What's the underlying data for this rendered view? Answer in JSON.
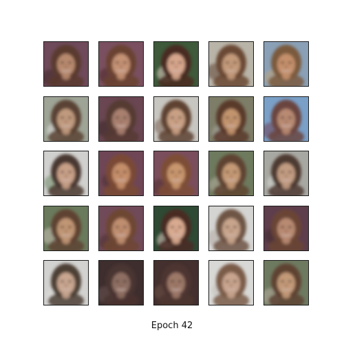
{
  "figure": {
    "caption": "Epoch 42",
    "rows": 5,
    "cols": 5
  },
  "samples": [
    {
      "bg": "#6e4a5a",
      "hair": "#5a3a2e",
      "skin": "#b78a6e",
      "accent": "#3e2a2a"
    },
    {
      "bg": "#7a5060",
      "hair": "#6a4230",
      "skin": "#c49274",
      "accent": "#4a2c2c"
    },
    {
      "bg": "#3e5a3a",
      "hair": "#4a2a20",
      "skin": "#d6a68c",
      "accent": "#e8d6c8"
    },
    {
      "bg": "#b9b4a8",
      "hair": "#6a4834",
      "skin": "#c39a7a",
      "accent": "#5e4636"
    },
    {
      "bg": "#8aa0b6",
      "hair": "#7a5a3e",
      "skin": "#c4906c",
      "accent": "#c0a27a"
    },
    {
      "bg": "#9ea496",
      "hair": "#5a4234",
      "skin": "#c09a7e",
      "accent": "#e0e0dc"
    },
    {
      "bg": "#6a4652",
      "hair": "#553a32",
      "skin": "#a98070",
      "accent": "#3a2a2c"
    },
    {
      "bg": "#c8c6c0",
      "hair": "#5e4232",
      "skin": "#c9a084",
      "accent": "#7a6252"
    },
    {
      "bg": "#7e7e68",
      "hair": "#5a3a2c",
      "skin": "#c2946e",
      "accent": "#a8a6a0"
    },
    {
      "bg": "#7aa0c8",
      "hair": "#6a4440",
      "skin": "#b88a72",
      "accent": "#6e3e52"
    },
    {
      "bg": "#d0d0ce",
      "hair": "#4a3830",
      "skin": "#c8a088",
      "accent": "#6e8a68"
    },
    {
      "bg": "#6e4656",
      "hair": "#7a4a34",
      "skin": "#c48e6a",
      "accent": "#4a2e30"
    },
    {
      "bg": "#7a4e5c",
      "hair": "#7e4e36",
      "skin": "#c8966e",
      "accent": "#4e3030"
    },
    {
      "bg": "#6e7a5e",
      "hair": "#5e4230",
      "skin": "#c49a76",
      "accent": "#b8b0a0"
    },
    {
      "bg": "#a8a8a2",
      "hair": "#4e3a32",
      "skin": "#c29c82",
      "accent": "#d8d8d4"
    },
    {
      "bg": "#6a7a5c",
      "hair": "#5e4232",
      "skin": "#c09674",
      "accent": "#c8c2b4"
    },
    {
      "bg": "#704a58",
      "hair": "#6e4632",
      "skin": "#bf8e70",
      "accent": "#4a2e30"
    },
    {
      "bg": "#2e4a34",
      "hair": "#4a2c24",
      "skin": "#d8aa90",
      "accent": "#e6cfc4"
    },
    {
      "bg": "#d4d4d2",
      "hair": "#6e5444",
      "skin": "#c8a48c",
      "accent": "#b4aca4"
    },
    {
      "bg": "#5e3e4c",
      "hair": "#6a4434",
      "skin": "#b88a72",
      "accent": "#3e2a2e"
    },
    {
      "bg": "#d2d2d0",
      "hair": "#4e4036",
      "skin": "#c8a690",
      "accent": "#e0ddd8"
    },
    {
      "bg": "#3e2e2e",
      "hair": "#4a3430",
      "skin": "#8e6e62",
      "accent": "#6a5450"
    },
    {
      "bg": "#44302e",
      "hair": "#4e3630",
      "skin": "#9c7868",
      "accent": "#6e5248"
    },
    {
      "bg": "#d8d8d6",
      "hair": "#7a5c48",
      "skin": "#c8a48e",
      "accent": "#c4c0ba"
    },
    {
      "bg": "#6e7a60",
      "hair": "#5e4232",
      "skin": "#c29a78",
      "accent": "#b8aea0"
    }
  ]
}
